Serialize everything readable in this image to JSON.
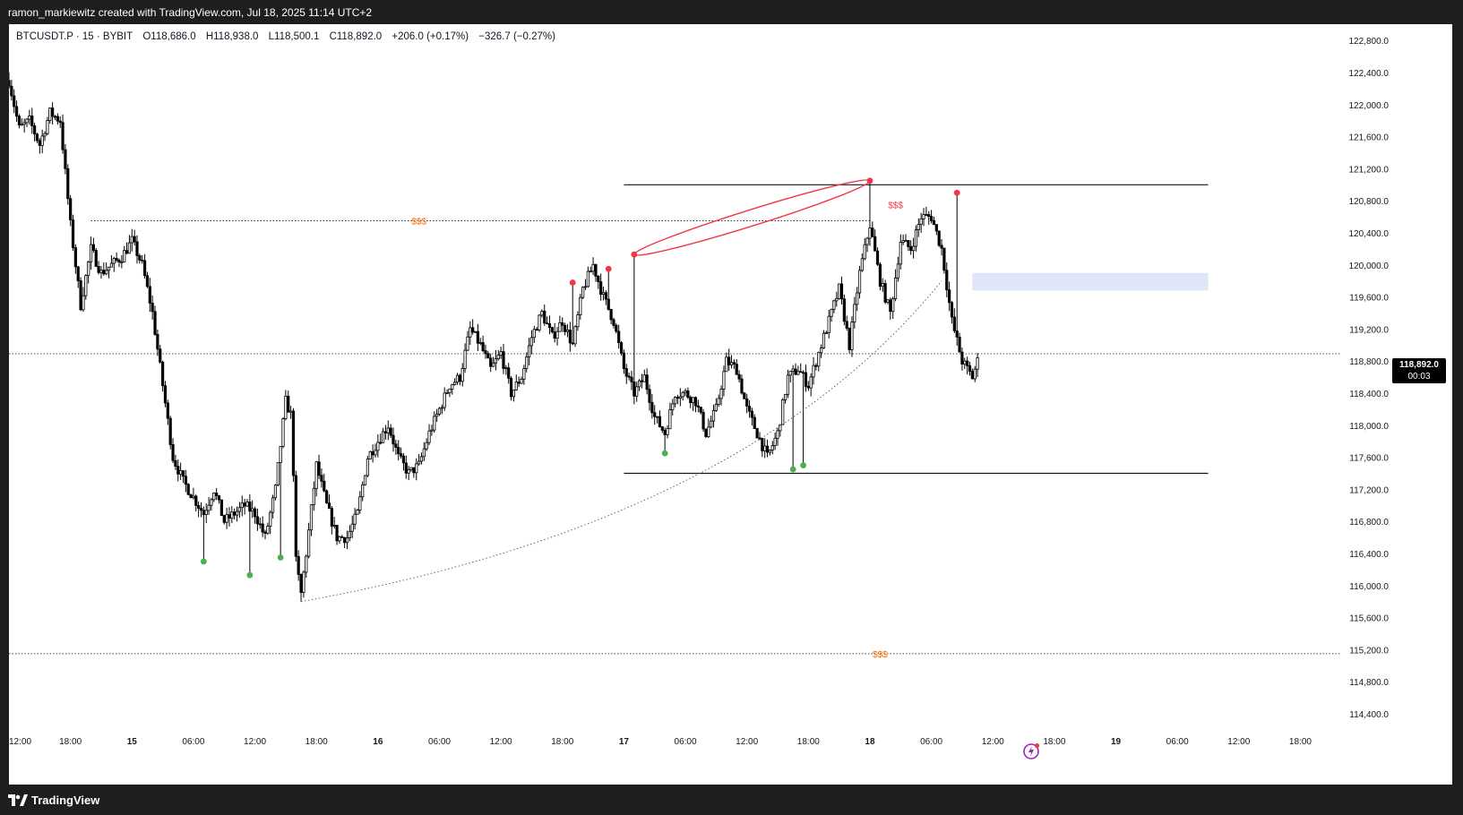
{
  "header": {
    "attribution": "ramon_markiewitz created with TradingView.com, Jul 18, 2025 11:14 UTC+2"
  },
  "legend": {
    "symbol": "BTCUSDT.P · 15 · BYBIT",
    "open": "O118,686.0",
    "high": "H118,938.0",
    "low": "L118,500.1",
    "close": "C118,892.0",
    "change": "+206.0 (+0.17%)",
    "change2": "−326.7 (−0.27%)"
  },
  "price_tag": {
    "price": "118,892.0",
    "countdown": "00:03"
  },
  "footer": {
    "brand": "TradingView"
  },
  "colors": {
    "up": "#ffffff",
    "down": "#000000",
    "red_marker": "#f23645",
    "green_marker": "#4caf50",
    "zone": "#dfe6f7",
    "liquidity": "#ff6d00"
  },
  "annotations": {
    "liquidity_label": "$$$"
  },
  "chart_data": {
    "type": "candlestick",
    "symbol": "BTCUSDT.P",
    "interval": "15",
    "exchange": "BYBIT",
    "ylim": [
      114100,
      123000
    ],
    "y_ticks": [
      "122,800.0",
      "122,400.0",
      "122,000.0",
      "121,600.0",
      "121,200.0",
      "120,800.0",
      "120,400.0",
      "120,000.0",
      "119,600.0",
      "119,200.0",
      "118,800.0",
      "118,400.0",
      "118,000.0",
      "117,600.0",
      "117,200.0",
      "116,800.0",
      "116,400.0",
      "116,000.0",
      "115,600.0",
      "115,200.0",
      "114,800.0",
      "114,400.0"
    ],
    "x_ticks": [
      {
        "label": "12:00",
        "h": 0
      },
      {
        "label": "18:00",
        "h": 6
      },
      {
        "label": "15",
        "h": 12,
        "bold": true
      },
      {
        "label": "06:00",
        "h": 18
      },
      {
        "label": "12:00",
        "h": 24
      },
      {
        "label": "18:00",
        "h": 30
      },
      {
        "label": "16",
        "h": 36,
        "bold": true
      },
      {
        "label": "06:00",
        "h": 42
      },
      {
        "label": "12:00",
        "h": 48
      },
      {
        "label": "18:00",
        "h": 54
      },
      {
        "label": "17",
        "h": 60,
        "bold": true
      },
      {
        "label": "06:00",
        "h": 66
      },
      {
        "label": "12:00",
        "h": 72
      },
      {
        "label": "18:00",
        "h": 78
      },
      {
        "label": "18",
        "h": 84,
        "bold": true
      },
      {
        "label": "06:00",
        "h": 90
      },
      {
        "label": "12:00",
        "h": 96
      },
      {
        "label": "18:00",
        "h": 102
      },
      {
        "label": "19",
        "h": 108,
        "bold": true
      },
      {
        "label": "06:00",
        "h": 114
      },
      {
        "label": "12:00",
        "h": 120
      },
      {
        "label": "18:00",
        "h": 126
      }
    ],
    "path_anchors": [
      [
        0,
        122300
      ],
      [
        1,
        121700
      ],
      [
        2,
        121800
      ],
      [
        3,
        121500
      ],
      [
        4,
        121900
      ],
      [
        5,
        121800
      ],
      [
        6,
        120500
      ],
      [
        7,
        119500
      ],
      [
        8,
        120200
      ],
      [
        9,
        119900
      ],
      [
        10,
        120000
      ],
      [
        11,
        120100
      ],
      [
        12,
        120300
      ],
      [
        13,
        120000
      ],
      [
        14,
        119400
      ],
      [
        15,
        118500
      ],
      [
        16,
        117600
      ],
      [
        17,
        117300
      ],
      [
        18,
        117100
      ],
      [
        19,
        116900
      ],
      [
        20,
        117200
      ],
      [
        21,
        116800
      ],
      [
        22,
        116900
      ],
      [
        23,
        117000
      ],
      [
        24,
        116900
      ],
      [
        25,
        116600
      ],
      [
        26,
        117200
      ],
      [
        27,
        118300
      ],
      [
        27.6,
        118100
      ],
      [
        28,
        116300
      ],
      [
        28.5,
        115900
      ],
      [
        29,
        116400
      ],
      [
        30,
        117500
      ],
      [
        31,
        117000
      ],
      [
        32,
        116600
      ],
      [
        33,
        116600
      ],
      [
        34,
        116900
      ],
      [
        35,
        117600
      ],
      [
        36,
        117800
      ],
      [
        37,
        118000
      ],
      [
        38,
        117600
      ],
      [
        39,
        117400
      ],
      [
        40,
        117500
      ],
      [
        41,
        117900
      ],
      [
        42,
        118200
      ],
      [
        43,
        118500
      ],
      [
        44,
        118600
      ],
      [
        45,
        119200
      ],
      [
        46,
        119000
      ],
      [
        47,
        118700
      ],
      [
        48,
        118900
      ],
      [
        49,
        118400
      ],
      [
        50,
        118600
      ],
      [
        51,
        119100
      ],
      [
        52,
        119400
      ],
      [
        53,
        119100
      ],
      [
        54,
        119300
      ],
      [
        55,
        119000
      ],
      [
        56,
        119700
      ],
      [
        57,
        120000
      ],
      [
        58,
        119600
      ],
      [
        59,
        119300
      ],
      [
        60,
        118700
      ],
      [
        61,
        118400
      ],
      [
        62,
        118600
      ],
      [
        63,
        118100
      ],
      [
        64,
        117900
      ],
      [
        65,
        118400
      ],
      [
        66,
        118400
      ],
      [
        67,
        118300
      ],
      [
        68,
        117900
      ],
      [
        69,
        118200
      ],
      [
        70,
        118800
      ],
      [
        71,
        118700
      ],
      [
        72,
        118200
      ],
      [
        73,
        117900
      ],
      [
        74,
        117600
      ],
      [
        75,
        117900
      ],
      [
        76,
        118600
      ],
      [
        77,
        118700
      ],
      [
        78,
        118500
      ],
      [
        79,
        118900
      ],
      [
        80,
        119300
      ],
      [
        81,
        119700
      ],
      [
        82,
        119000
      ],
      [
        83,
        119900
      ],
      [
        84,
        120500
      ],
      [
        85,
        119800
      ],
      [
        86,
        119400
      ],
      [
        87,
        120300
      ],
      [
        88,
        120200
      ],
      [
        89,
        120600
      ],
      [
        90,
        120600
      ],
      [
        91,
        120200
      ],
      [
        92,
        119300
      ],
      [
        93,
        118800
      ],
      [
        94,
        118600
      ],
      [
        94.5,
        118800
      ]
    ],
    "events": {
      "peak_top": {
        "h": 84,
        "price": 121050
      },
      "peak_left": {
        "h": 61,
        "price": 120130
      },
      "peak_right": {
        "h": 92.5,
        "price": 120900
      },
      "low_ref": {
        "h": 28.5,
        "price": 115800
      },
      "green_pivots": [
        [
          19,
          116300
        ],
        [
          23.5,
          116130
        ],
        [
          26.5,
          116350
        ],
        [
          64,
          117650
        ],
        [
          76.5,
          117450
        ],
        [
          77.5,
          117500
        ]
      ],
      "red_pivots": [
        [
          55,
          119780
        ],
        [
          58.5,
          119950
        ]
      ]
    },
    "levels": [
      {
        "name": "range-high",
        "price": 121000,
        "h_from": 60,
        "h_to": 117
      },
      {
        "name": "range-low",
        "price": 117400,
        "h_from": 60,
        "h_to": 117
      },
      {
        "name": "liquidity-high",
        "price": 120550,
        "h_from": 8,
        "h_to": 84
      },
      {
        "name": "liquidity-low",
        "price": 115150,
        "h_from": 0,
        "h_to": 130
      },
      {
        "name": "current-price",
        "price": 118892,
        "h_from": 0,
        "h_to": 130
      }
    ],
    "zone": {
      "price_top": 119900,
      "price_bottom": 119680,
      "h_from": 94,
      "h_to": 117
    },
    "last_price": 118892,
    "grid": false
  }
}
